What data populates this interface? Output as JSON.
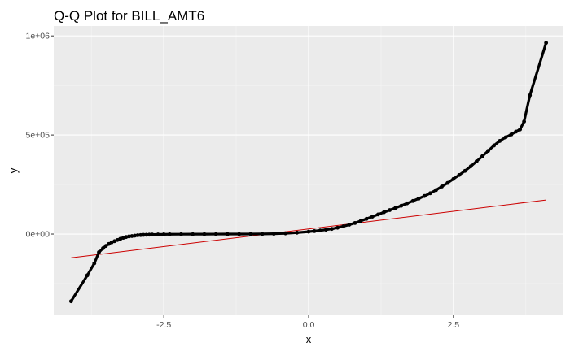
{
  "chart_data": {
    "type": "scatter",
    "title": "Q-Q Plot for BILL_AMT6",
    "xlabel": "x",
    "ylabel": "y",
    "x_ticks": [
      {
        "value": -2.5,
        "label": "-2.5"
      },
      {
        "value": 0.0,
        "label": "0.0"
      },
      {
        "value": 2.5,
        "label": "2.5"
      }
    ],
    "y_ticks": [
      {
        "value": 0,
        "label": "0e+00"
      },
      {
        "value": 500000,
        "label": "5e+05"
      },
      {
        "value": 1000000,
        "label": "1e+06"
      }
    ],
    "xlim": [
      -4.4,
      4.4
    ],
    "ylim": [
      -410000,
      1050000
    ],
    "grid": true,
    "series": [
      {
        "kind": "points",
        "color": "#000000",
        "points": [
          [
            -4.1,
            -339000
          ],
          [
            -3.82,
            -208000
          ],
          [
            -3.7,
            -148000
          ],
          [
            -3.62,
            -92000
          ],
          [
            -3.55,
            -72000
          ],
          [
            -3.5,
            -60000
          ],
          [
            -3.45,
            -50000
          ],
          [
            -3.4,
            -42000
          ],
          [
            -3.35,
            -36000
          ],
          [
            -3.3,
            -30000
          ],
          [
            -3.25,
            -24000
          ],
          [
            -3.2,
            -19000
          ],
          [
            -3.15,
            -15000
          ],
          [
            -3.1,
            -12000
          ],
          [
            -3.05,
            -10000
          ],
          [
            -3.0,
            -8000
          ],
          [
            -2.95,
            -6000
          ],
          [
            -2.9,
            -5000
          ],
          [
            -2.85,
            -4000
          ],
          [
            -2.8,
            -3500
          ],
          [
            -2.75,
            -3000
          ],
          [
            -2.7,
            -2500
          ],
          [
            -2.6,
            -2000
          ],
          [
            -2.5,
            -1500
          ],
          [
            -2.4,
            -1000
          ],
          [
            -2.2,
            -700
          ],
          [
            -2.0,
            -500
          ],
          [
            -1.8,
            -300
          ],
          [
            -1.6,
            -150
          ],
          [
            -1.4,
            0
          ],
          [
            -1.2,
            0
          ],
          [
            -1.0,
            100
          ],
          [
            -0.8,
            500
          ],
          [
            -0.6,
            1500
          ],
          [
            -0.4,
            3500
          ],
          [
            -0.2,
            7000
          ],
          [
            0.0,
            12000
          ],
          [
            0.1,
            15000
          ],
          [
            0.2,
            18000
          ],
          [
            0.3,
            22000
          ],
          [
            0.4,
            26000
          ],
          [
            0.5,
            32000
          ],
          [
            0.6,
            39000
          ],
          [
            0.7,
            47000
          ],
          [
            0.8,
            56000
          ],
          [
            0.9,
            66000
          ],
          [
            1.0,
            77000
          ],
          [
            1.1,
            88000
          ],
          [
            1.2,
            99000
          ],
          [
            1.3,
            110000
          ],
          [
            1.4,
            121000
          ],
          [
            1.5,
            132000
          ],
          [
            1.6,
            143000
          ],
          [
            1.7,
            155000
          ],
          [
            1.8,
            167000
          ],
          [
            1.9,
            179000
          ],
          [
            2.0,
            192000
          ],
          [
            2.1,
            206000
          ],
          [
            2.2,
            222000
          ],
          [
            2.3,
            240000
          ],
          [
            2.4,
            258000
          ],
          [
            2.5,
            278000
          ],
          [
            2.6,
            298000
          ],
          [
            2.7,
            319000
          ],
          [
            2.8,
            342000
          ],
          [
            2.9,
            367000
          ],
          [
            3.0,
            393000
          ],
          [
            3.1,
            420000
          ],
          [
            3.2,
            447000
          ],
          [
            3.3,
            470000
          ],
          [
            3.4,
            488000
          ],
          [
            3.5,
            503000
          ],
          [
            3.58,
            517000
          ],
          [
            3.65,
            528000
          ],
          [
            3.72,
            568000
          ],
          [
            3.82,
            700000
          ],
          [
            4.1,
            965000
          ]
        ]
      },
      {
        "kind": "reference-line",
        "color": "#cc0000",
        "points": [
          [
            -4.1,
            -120000
          ],
          [
            4.1,
            172000
          ]
        ]
      }
    ]
  }
}
